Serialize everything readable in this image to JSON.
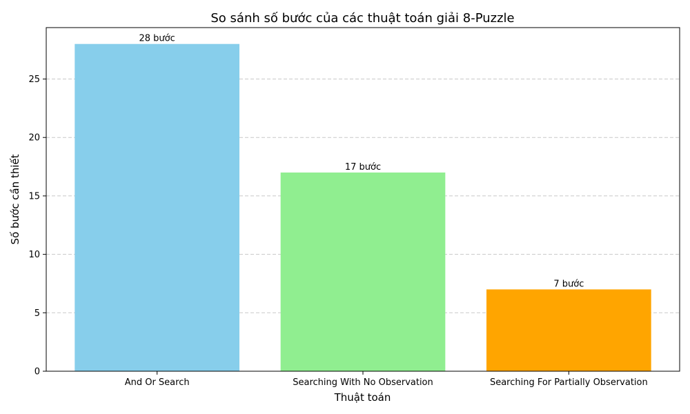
{
  "chart_data": {
    "type": "bar",
    "title": "So sánh số bước của các thuật toán giải 8-Puzzle",
    "xlabel": "Thuật toán",
    "ylabel": "Số bước cần thiết",
    "categories": [
      "And Or Search",
      "Searching With No Observation",
      "Searching For Partially Observation"
    ],
    "values": [
      28,
      17,
      7
    ],
    "data_labels": [
      "28 bước",
      "17 bước",
      "7 bước"
    ],
    "colors": [
      "#87ceeb",
      "#90ee90",
      "#ffa500"
    ],
    "ylim": [
      0,
      29.4
    ],
    "yticks": [
      0,
      5,
      10,
      15,
      20,
      25
    ],
    "grid": "y-dashed",
    "legend": "none"
  }
}
